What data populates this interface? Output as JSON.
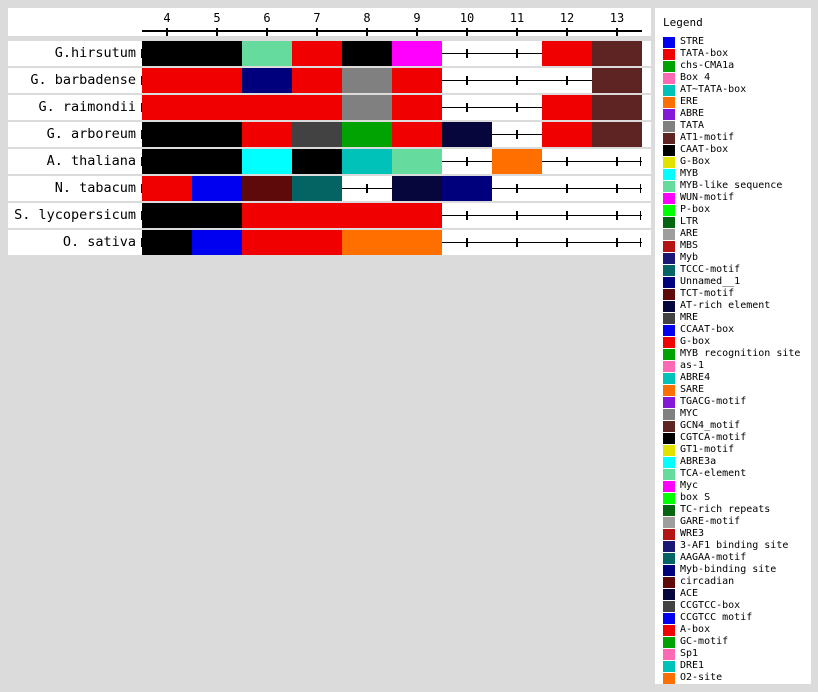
{
  "page": {
    "background": "#DBDBDB",
    "panel_background": "#FFFFFF"
  },
  "palette": {
    "blue": "#0000F0",
    "red": "#F10000",
    "green": "#00A302",
    "pink": "#FF69B4",
    "brightteal": "#00C2B8",
    "orange": "#FF6F00",
    "purple": "#8318D8",
    "gray": "#808080",
    "darkbrown": "#5E2424",
    "black": "#000000",
    "yellow": "#E2E200",
    "cyan": "#00FFFF",
    "aquamarine": "#66DB9E",
    "magenta": "#FF00FF",
    "lime": "#00FF00",
    "darkgreen": "#03650F",
    "lightgray": "#9E9E9E",
    "firebrick": "#B41414",
    "midnavy": "#191975",
    "darkteal": "#046464",
    "navy": "#00007D",
    "darkmaroon": "#5E0A0A",
    "darkestnavy": "#06063C",
    "darkgray": "#424242"
  },
  "chart_data": {
    "type": "heatmap",
    "title": "",
    "xlabel": "",
    "ylabel": "",
    "x_ticks": [
      4,
      5,
      6,
      7,
      8,
      9,
      10,
      11,
      12,
      13
    ],
    "x_range": [
      3.5,
      13.5
    ],
    "axis_position": "top",
    "legend_position": "right",
    "grid": false,
    "rows": [
      {
        "label": "G.hirsutum",
        "blocks": [
          {
            "start": 4,
            "end": 5,
            "color": "black"
          },
          {
            "start": 6,
            "end": 6,
            "color": "aquamarine"
          },
          {
            "start": 7,
            "end": 7,
            "color": "red"
          },
          {
            "start": 8,
            "end": 8,
            "color": "black"
          },
          {
            "start": 9,
            "end": 9,
            "color": "magenta"
          },
          {
            "start": 12,
            "end": 12,
            "color": "red"
          },
          {
            "start": 13,
            "end": 13,
            "color": "darkbrown"
          }
        ]
      },
      {
        "label": "G. barbadense",
        "blocks": [
          {
            "start": 4,
            "end": 5,
            "color": "red"
          },
          {
            "start": 6,
            "end": 6,
            "color": "navy"
          },
          {
            "start": 7,
            "end": 7,
            "color": "red"
          },
          {
            "start": 8,
            "end": 8,
            "color": "gray"
          },
          {
            "start": 9,
            "end": 9,
            "color": "red"
          },
          {
            "start": 13,
            "end": 13,
            "color": "darkbrown"
          }
        ]
      },
      {
        "label": "G. raimondii",
        "blocks": [
          {
            "start": 4,
            "end": 7,
            "color": "red"
          },
          {
            "start": 8,
            "end": 8,
            "color": "gray"
          },
          {
            "start": 9,
            "end": 9,
            "color": "red"
          },
          {
            "start": 12,
            "end": 12,
            "color": "red"
          },
          {
            "start": 13,
            "end": 13,
            "color": "darkbrown"
          }
        ]
      },
      {
        "label": "G. arboreum",
        "blocks": [
          {
            "start": 4,
            "end": 5,
            "color": "black"
          },
          {
            "start": 6,
            "end": 6,
            "color": "red"
          },
          {
            "start": 7,
            "end": 7,
            "color": "darkgray"
          },
          {
            "start": 8,
            "end": 8,
            "color": "green"
          },
          {
            "start": 9,
            "end": 9,
            "color": "red"
          },
          {
            "start": 10,
            "end": 10,
            "color": "darkestnavy"
          },
          {
            "start": 12,
            "end": 12,
            "color": "red"
          },
          {
            "start": 13,
            "end": 13,
            "color": "darkbrown"
          }
        ]
      },
      {
        "label": "A. thaliana",
        "blocks": [
          {
            "start": 4,
            "end": 5,
            "color": "black"
          },
          {
            "start": 6,
            "end": 6,
            "color": "cyan"
          },
          {
            "start": 7,
            "end": 7,
            "color": "black"
          },
          {
            "start": 8,
            "end": 8,
            "color": "brightteal"
          },
          {
            "start": 9,
            "end": 9,
            "color": "aquamarine"
          },
          {
            "start": 11,
            "end": 11,
            "color": "orange"
          }
        ]
      },
      {
        "label": "N. tabacum",
        "blocks": [
          {
            "start": 4,
            "end": 4,
            "color": "red"
          },
          {
            "start": 5,
            "end": 5,
            "color": "blue"
          },
          {
            "start": 6,
            "end": 6,
            "color": "darkmaroon"
          },
          {
            "start": 7,
            "end": 7,
            "color": "darkteal"
          },
          {
            "start": 9,
            "end": 9,
            "color": "darkestnavy"
          },
          {
            "start": 10,
            "end": 10,
            "color": "navy"
          }
        ]
      },
      {
        "label": "S. lycopersicum",
        "blocks": [
          {
            "start": 4,
            "end": 5,
            "color": "black"
          },
          {
            "start": 6,
            "end": 9,
            "color": "red"
          }
        ]
      },
      {
        "label": "O. sativa",
        "blocks": [
          {
            "start": 4,
            "end": 4,
            "color": "black"
          },
          {
            "start": 5,
            "end": 5,
            "color": "blue"
          },
          {
            "start": 6,
            "end": 7,
            "color": "red"
          },
          {
            "start": 8,
            "end": 9,
            "color": "orange"
          }
        ]
      }
    ]
  },
  "legend": {
    "title": "Legend",
    "items": [
      {
        "label": "STRE",
        "color": "blue"
      },
      {
        "label": "TATA-box",
        "color": "red"
      },
      {
        "label": "chs-CMA1a",
        "color": "green"
      },
      {
        "label": "Box 4",
        "color": "pink"
      },
      {
        "label": "AT~TATA-box",
        "color": "brightteal"
      },
      {
        "label": "ERE",
        "color": "orange"
      },
      {
        "label": "ABRE",
        "color": "purple"
      },
      {
        "label": "TATA",
        "color": "gray"
      },
      {
        "label": "AT1-motif",
        "color": "darkbrown"
      },
      {
        "label": "CAAT-box",
        "color": "black"
      },
      {
        "label": "G-Box",
        "color": "yellow"
      },
      {
        "label": "MYB",
        "color": "cyan"
      },
      {
        "label": "MYB-like sequence",
        "color": "aquamarine"
      },
      {
        "label": "WUN-motif",
        "color": "magenta"
      },
      {
        "label": "P-box",
        "color": "lime"
      },
      {
        "label": "LTR",
        "color": "darkgreen"
      },
      {
        "label": "ARE",
        "color": "lightgray"
      },
      {
        "label": "MBS",
        "color": "firebrick"
      },
      {
        "label": "Myb",
        "color": "midnavy"
      },
      {
        "label": "TCCC-motif",
        "color": "darkteal"
      },
      {
        "label": "Unnamed__1",
        "color": "navy"
      },
      {
        "label": "TCT-motif",
        "color": "darkmaroon"
      },
      {
        "label": "AT-rich element",
        "color": "darkestnavy"
      },
      {
        "label": "MRE",
        "color": "darkgray"
      },
      {
        "label": "CCAAT-box",
        "color": "blue"
      },
      {
        "label": "G-box",
        "color": "red"
      },
      {
        "label": "MYB recognition site",
        "color": "green"
      },
      {
        "label": "as-1",
        "color": "pink"
      },
      {
        "label": "ABRE4",
        "color": "brightteal"
      },
      {
        "label": "SARE",
        "color": "orange"
      },
      {
        "label": "TGACG-motif",
        "color": "purple"
      },
      {
        "label": "MYC",
        "color": "gray"
      },
      {
        "label": "GCN4_motif",
        "color": "darkbrown"
      },
      {
        "label": "CGTCA-motif",
        "color": "black"
      },
      {
        "label": "GT1-motif",
        "color": "yellow"
      },
      {
        "label": "ABRE3a",
        "color": "cyan"
      },
      {
        "label": "TCA-element",
        "color": "aquamarine"
      },
      {
        "label": "Myc",
        "color": "magenta"
      },
      {
        "label": "box S",
        "color": "lime"
      },
      {
        "label": "TC-rich repeats",
        "color": "darkgreen"
      },
      {
        "label": "GARE-motif",
        "color": "lightgray"
      },
      {
        "label": "WRE3",
        "color": "firebrick"
      },
      {
        "label": "3-AF1 binding site",
        "color": "midnavy"
      },
      {
        "label": "AAGAA-motif",
        "color": "darkteal"
      },
      {
        "label": "Myb-binding site",
        "color": "navy"
      },
      {
        "label": "circadian",
        "color": "darkmaroon"
      },
      {
        "label": "ACE",
        "color": "darkestnavy"
      },
      {
        "label": "CCGTCC-box",
        "color": "darkgray"
      },
      {
        "label": "CCGTCC motif",
        "color": "blue"
      },
      {
        "label": "A-box",
        "color": "red"
      },
      {
        "label": "GC-motif",
        "color": "green"
      },
      {
        "label": "Sp1",
        "color": "pink"
      },
      {
        "label": "DRE1",
        "color": "brightteal"
      },
      {
        "label": "O2-site",
        "color": "orange"
      }
    ]
  }
}
